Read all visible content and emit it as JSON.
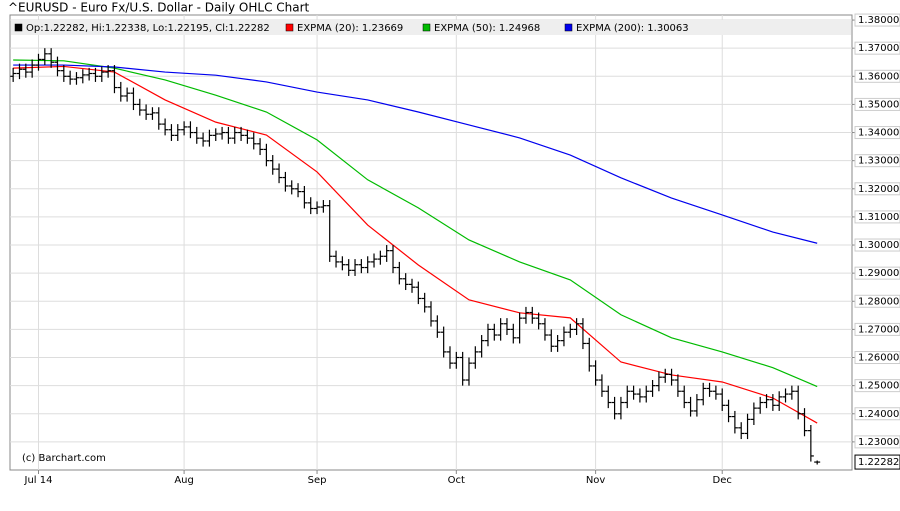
{
  "chart_data": {
    "type": "ohlc",
    "title": "^EURUSD - Euro Fx/U.S. Dollar - Daily OHLC Chart",
    "credit": "(c) Barchart.com",
    "grid": true,
    "xlim": [
      -0.5,
      132.5
    ],
    "xticks": [
      {
        "value": 4,
        "label": "Jul 14"
      },
      {
        "value": 27,
        "label": "Aug"
      },
      {
        "value": 48,
        "label": "Sep"
      },
      {
        "value": 70,
        "label": "Oct"
      },
      {
        "value": 92,
        "label": "Nov"
      },
      {
        "value": 112,
        "label": "Dec"
      }
    ],
    "ylim": [
      1.22,
      1.3818
    ],
    "yticks": [
      {
        "value": 1.23,
        "label": "1.23000"
      },
      {
        "value": 1.24,
        "label": "1.24000"
      },
      {
        "value": 1.25,
        "label": "1.25000"
      },
      {
        "value": 1.26,
        "label": "1.26000"
      },
      {
        "value": 1.27,
        "label": "1.27000"
      },
      {
        "value": 1.28,
        "label": "1.28000"
      },
      {
        "value": 1.29,
        "label": "1.29000"
      },
      {
        "value": 1.3,
        "label": "1.30000"
      },
      {
        "value": 1.31,
        "label": "1.31000"
      },
      {
        "value": 1.32,
        "label": "1.32000"
      },
      {
        "value": 1.33,
        "label": "1.33000"
      },
      {
        "value": 1.34,
        "label": "1.34000"
      },
      {
        "value": 1.35,
        "label": "1.35000"
      },
      {
        "value": 1.36,
        "label": "1.36000"
      },
      {
        "value": 1.37,
        "label": "1.37000"
      },
      {
        "value": 1.38,
        "label": "1.38000"
      }
    ],
    "last_price": {
      "value": 1.22282,
      "label": "1.22282"
    },
    "ohlc": {
      "name": "Op:1.22282, Hi:1.22338, Lo:1.22195, Cl:1.22282",
      "color": "#000000",
      "open": [
        1.36,
        1.361,
        1.3625,
        1.3615,
        1.364,
        1.366,
        1.368,
        1.365,
        1.362,
        1.36,
        1.359,
        1.3595,
        1.3605,
        1.361,
        1.36,
        1.3615,
        1.362,
        1.356,
        1.353,
        1.354,
        1.35,
        1.348,
        1.3465,
        1.347,
        1.343,
        1.341,
        1.339,
        1.341,
        1.342,
        1.34,
        1.338,
        1.337,
        1.339,
        1.3395,
        1.34,
        1.338,
        1.34,
        1.339,
        1.338,
        1.336,
        1.334,
        1.33,
        1.327,
        1.324,
        1.321,
        1.32,
        1.319,
        1.315,
        1.313,
        1.3135,
        1.314,
        1.296,
        1.294,
        1.293,
        1.291,
        1.293,
        1.292,
        1.294,
        1.295,
        1.296,
        1.298,
        1.292,
        1.288,
        1.286,
        1.285,
        1.281,
        1.278,
        1.273,
        1.269,
        1.262,
        1.258,
        1.26,
        1.252,
        1.258,
        1.262,
        1.266,
        1.27,
        1.268,
        1.272,
        1.27,
        1.267,
        1.274,
        1.276,
        1.274,
        1.272,
        1.268,
        1.264,
        1.266,
        1.269,
        1.27,
        1.272,
        1.265,
        1.257,
        1.252,
        1.248,
        1.244,
        1.24,
        1.244,
        1.248,
        1.247,
        1.246,
        1.248,
        1.25,
        1.253,
        1.254,
        1.252,
        1.248,
        1.244,
        1.241,
        1.245,
        1.249,
        1.248,
        1.247,
        1.243,
        1.239,
        1.235,
        1.233,
        1.238,
        1.242,
        1.244,
        1.245,
        1.243,
        1.246,
        1.247,
        1.248,
        1.24,
        1.234,
        1.22282
      ],
      "high": [
        1.363,
        1.3645,
        1.3645,
        1.366,
        1.368,
        1.37,
        1.37,
        1.367,
        1.364,
        1.362,
        1.3615,
        1.3625,
        1.363,
        1.363,
        1.3635,
        1.364,
        1.364,
        1.358,
        1.356,
        1.356,
        1.352,
        1.35,
        1.349,
        1.349,
        1.345,
        1.343,
        1.343,
        1.344,
        1.344,
        1.342,
        1.34,
        1.341,
        1.3415,
        1.342,
        1.342,
        1.342,
        1.342,
        1.341,
        1.34,
        1.338,
        1.336,
        1.332,
        1.329,
        1.326,
        1.323,
        1.322,
        1.321,
        1.317,
        1.3155,
        1.316,
        1.316,
        1.298,
        1.296,
        1.295,
        1.295,
        1.295,
        1.296,
        1.297,
        1.298,
        1.3,
        1.3,
        1.294,
        1.29,
        1.288,
        1.287,
        1.283,
        1.28,
        1.275,
        1.271,
        1.264,
        1.262,
        1.262,
        1.26,
        1.264,
        1.268,
        1.272,
        1.272,
        1.274,
        1.274,
        1.272,
        1.276,
        1.278,
        1.278,
        1.276,
        1.274,
        1.27,
        1.268,
        1.271,
        1.272,
        1.274,
        1.274,
        1.267,
        1.259,
        1.254,
        1.25,
        1.246,
        1.246,
        1.25,
        1.25,
        1.249,
        1.25,
        1.252,
        1.255,
        1.256,
        1.256,
        1.254,
        1.25,
        1.246,
        1.247,
        1.251,
        1.251,
        1.25,
        1.249,
        1.245,
        1.241,
        1.237,
        1.24,
        1.244,
        1.246,
        1.247,
        1.247,
        1.248,
        1.249,
        1.25,
        1.25,
        1.242,
        1.236,
        1.22338
      ],
      "low": [
        1.358,
        1.359,
        1.3595,
        1.3595,
        1.362,
        1.364,
        1.363,
        1.36,
        1.358,
        1.357,
        1.357,
        1.3575,
        1.3585,
        1.358,
        1.358,
        1.3595,
        1.354,
        1.351,
        1.351,
        1.348,
        1.346,
        1.3445,
        1.3445,
        1.341,
        1.339,
        1.337,
        1.337,
        1.339,
        1.338,
        1.336,
        1.335,
        1.335,
        1.337,
        1.3375,
        1.336,
        1.336,
        1.337,
        1.336,
        1.334,
        1.332,
        1.328,
        1.325,
        1.322,
        1.319,
        1.318,
        1.317,
        1.313,
        1.311,
        1.311,
        1.3115,
        1.294,
        1.292,
        1.291,
        1.289,
        1.289,
        1.29,
        1.29,
        1.292,
        1.293,
        1.294,
        1.29,
        1.286,
        1.284,
        1.283,
        1.279,
        1.276,
        1.271,
        1.267,
        1.26,
        1.256,
        1.256,
        1.25,
        1.25,
        1.256,
        1.26,
        1.264,
        1.266,
        1.266,
        1.268,
        1.265,
        1.265,
        1.272,
        1.272,
        1.27,
        1.266,
        1.262,
        1.262,
        1.264,
        1.267,
        1.268,
        1.263,
        1.255,
        1.25,
        1.246,
        1.242,
        1.238,
        1.238,
        1.242,
        1.245,
        1.244,
        1.244,
        1.246,
        1.248,
        1.251,
        1.25,
        1.246,
        1.242,
        1.239,
        1.239,
        1.243,
        1.246,
        1.245,
        1.241,
        1.237,
        1.233,
        1.231,
        1.231,
        1.236,
        1.24,
        1.242,
        1.241,
        1.241,
        1.244,
        1.245,
        1.238,
        1.232,
        1.223,
        1.22195
      ],
      "close": [
        1.361,
        1.3625,
        1.3615,
        1.364,
        1.366,
        1.368,
        1.365,
        1.362,
        1.36,
        1.359,
        1.3595,
        1.3605,
        1.361,
        1.36,
        1.3615,
        1.362,
        1.356,
        1.353,
        1.354,
        1.35,
        1.348,
        1.3465,
        1.347,
        1.343,
        1.341,
        1.339,
        1.341,
        1.342,
        1.34,
        1.338,
        1.337,
        1.339,
        1.3395,
        1.34,
        1.338,
        1.34,
        1.339,
        1.338,
        1.336,
        1.334,
        1.33,
        1.327,
        1.324,
        1.321,
        1.32,
        1.319,
        1.315,
        1.313,
        1.3135,
        1.314,
        1.296,
        1.294,
        1.293,
        1.291,
        1.293,
        1.292,
        1.294,
        1.295,
        1.296,
        1.298,
        1.292,
        1.288,
        1.286,
        1.285,
        1.281,
        1.278,
        1.273,
        1.269,
        1.262,
        1.258,
        1.26,
        1.252,
        1.258,
        1.262,
        1.266,
        1.27,
        1.268,
        1.272,
        1.27,
        1.267,
        1.274,
        1.276,
        1.274,
        1.272,
        1.268,
        1.264,
        1.266,
        1.269,
        1.27,
        1.272,
        1.265,
        1.257,
        1.252,
        1.248,
        1.244,
        1.24,
        1.244,
        1.248,
        1.247,
        1.246,
        1.248,
        1.25,
        1.253,
        1.254,
        1.252,
        1.248,
        1.244,
        1.241,
        1.245,
        1.249,
        1.248,
        1.247,
        1.243,
        1.239,
        1.235,
        1.233,
        1.238,
        1.242,
        1.244,
        1.245,
        1.243,
        1.246,
        1.247,
        1.248,
        1.24,
        1.234,
        1.225,
        1.22282
      ]
    },
    "series": [
      {
        "name": "EXPMA (20): 1.23669",
        "color": "#ff0000",
        "x": [
          0,
          8,
          16,
          24,
          32,
          40,
          48,
          56,
          64,
          72,
          80,
          88,
          96,
          104,
          112,
          120,
          127
        ],
        "values": [
          1.3629,
          1.3635,
          1.3615,
          1.3516,
          1.3437,
          1.3391,
          1.326,
          1.3071,
          1.2929,
          1.2805,
          1.2759,
          1.2741,
          1.2584,
          1.2538,
          1.2513,
          1.2456,
          1.23669
        ]
      },
      {
        "name": "EXPMA (50): 1.24968",
        "color": "#00bb00",
        "x": [
          0,
          8,
          16,
          24,
          32,
          40,
          48,
          56,
          64,
          72,
          80,
          88,
          96,
          104,
          112,
          120,
          127
        ],
        "values": [
          1.3658,
          1.3655,
          1.3629,
          1.3587,
          1.3533,
          1.3473,
          1.3374,
          1.3232,
          1.3132,
          1.3018,
          1.294,
          1.2876,
          1.2752,
          1.267,
          1.262,
          1.2564,
          1.24968
        ]
      },
      {
        "name": "EXPMA (200): 1.30063",
        "color": "#0000ee",
        "x": [
          0,
          8,
          16,
          24,
          32,
          40,
          48,
          56,
          64,
          72,
          80,
          88,
          96,
          104,
          112,
          120,
          127
        ],
        "values": [
          1.364,
          1.364,
          1.3633,
          1.3615,
          1.3604,
          1.358,
          1.3544,
          1.3516,
          1.3473,
          1.3427,
          1.3381,
          1.332,
          1.3239,
          1.3167,
          1.3107,
          1.3046,
          1.30063
        ]
      }
    ]
  }
}
